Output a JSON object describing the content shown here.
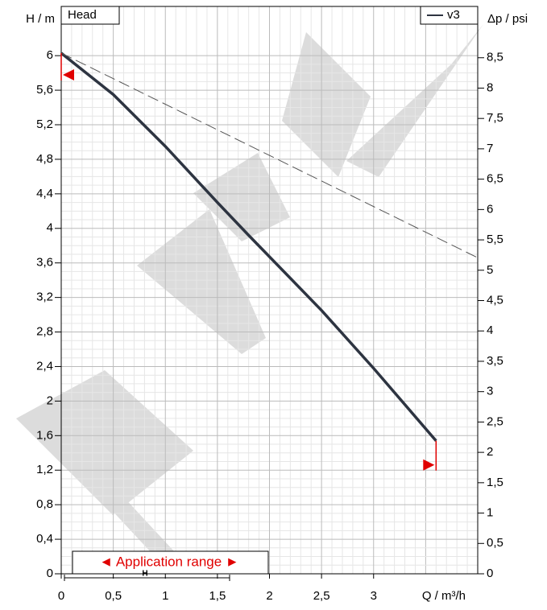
{
  "chart_data": {
    "type": "line",
    "title": "Head",
    "x_label": "Q / m³/h",
    "y_label": "H / m",
    "y2_label": "Δp / psi",
    "annotation": "◄ Application range ►",
    "range_marker_label": "H",
    "xlim": [
      0,
      4
    ],
    "xticks": [
      0,
      {
        "value": 0.5,
        "label": "0,5"
      },
      1,
      {
        "value": 1.5,
        "label": "1,5"
      },
      2,
      {
        "value": 2.5,
        "label": "2,5"
      },
      3
    ],
    "ylim": [
      0,
      6.57
    ],
    "yticks": [
      0,
      {
        "value": 0.4,
        "label": "0,4"
      },
      {
        "value": 0.8,
        "label": "0,8"
      },
      {
        "value": 1.2,
        "label": "1,2"
      },
      {
        "value": 1.6,
        "label": "1,6"
      },
      2,
      {
        "value": 2.4,
        "label": "2,4"
      },
      {
        "value": 2.8,
        "label": "2,8"
      },
      {
        "value": 3.2,
        "label": "3,2"
      },
      {
        "value": 3.6,
        "label": "3,6"
      },
      4,
      {
        "value": 4.4,
        "label": "4,4"
      },
      {
        "value": 4.8,
        "label": "4,8"
      },
      {
        "value": 5.2,
        "label": "5,2"
      },
      {
        "value": 5.6,
        "label": "5,6"
      },
      6
    ],
    "y2lim": [
      0,
      9.345
    ],
    "y2ticks": [
      0,
      {
        "value": 0.5,
        "label": "0,5"
      },
      1,
      {
        "value": 1.5,
        "label": "1,5"
      },
      2,
      {
        "value": 2.5,
        "label": "2,5"
      },
      3,
      {
        "value": 3.5,
        "label": "3,5"
      },
      4,
      {
        "value": 4.5,
        "label": "4,5"
      },
      5,
      {
        "value": 5.5,
        "label": "5,5"
      },
      6,
      {
        "value": 6.5,
        "label": "6,5"
      },
      7,
      {
        "value": 7.5,
        "label": "7,5"
      },
      8,
      {
        "value": 8.5,
        "label": "8,5"
      }
    ],
    "grid": true,
    "series": [
      {
        "name": "v3",
        "color": "#2d3441",
        "x": [
          0,
          0.5,
          1,
          1.5,
          1.8,
          2.5,
          3,
          3.6
        ],
        "values": [
          6.03,
          5.55,
          4.95,
          4.3,
          3.92,
          3.05,
          2.38,
          1.54
        ]
      },
      {
        "color": "#555555",
        "dashed": true,
        "x": [
          0,
          4
        ],
        "values": [
          6.03,
          3.66
        ]
      }
    ]
  }
}
